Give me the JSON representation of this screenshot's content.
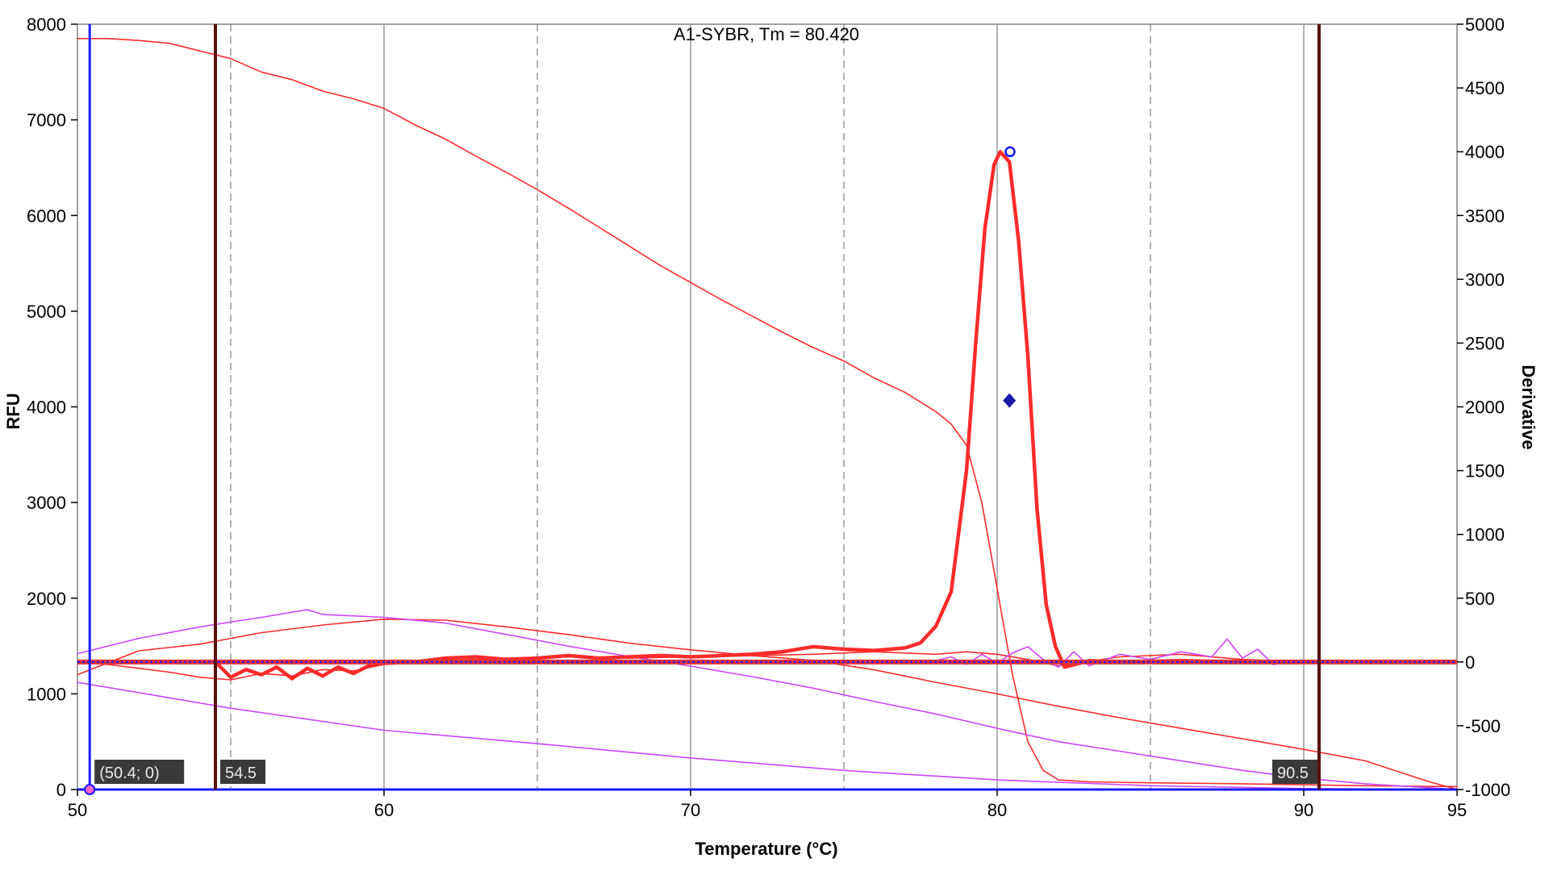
{
  "chart_data": {
    "type": "line",
    "title": "A1-SYBR, Tm = 80.420",
    "xlabel": "Temperature (°C)",
    "ylabel": "RFU",
    "y2label": "Derivative",
    "xlim": [
      50,
      95
    ],
    "ylim": [
      0,
      8000
    ],
    "y2lim": [
      -1000,
      5000
    ],
    "x_ticks": [
      50,
      60,
      70,
      80,
      90,
      95
    ],
    "y_ticks": [
      0,
      1000,
      2000,
      3000,
      4000,
      5000,
      6000,
      7000,
      8000
    ],
    "y2_ticks": [
      -1000,
      -500,
      0,
      500,
      1000,
      1500,
      2000,
      2500,
      3000,
      3500,
      4000,
      4500,
      5000
    ],
    "grid": {
      "solid_x": [
        60,
        70,
        80,
        90
      ],
      "dashed_x": [
        55,
        65,
        75,
        85
      ]
    },
    "colors": {
      "red": "#ff2b2b",
      "magenta": "#cc44ff",
      "blue": "#1a1aff",
      "cursor": "#5a1010",
      "baseline": "#e0303a"
    },
    "cursors": [
      {
        "x": 50.4,
        "label": "(50.4; 0)",
        "color": "#1a1aff"
      },
      {
        "x": 54.5,
        "label": "54.5",
        "color": "#5a1010"
      },
      {
        "x": 90.5,
        "label": "90.5",
        "color": "#5a1010"
      }
    ],
    "tm": {
      "x": 80.42,
      "y2": 4000
    },
    "marker": {
      "x": 80.4,
      "y2": 2050
    },
    "series": [
      {
        "axis": "left",
        "color": "#ff2b2b",
        "width": 1.6,
        "x": [
          50,
          51,
          52,
          53,
          54,
          55,
          56,
          57,
          58,
          59,
          60,
          61,
          62,
          63,
          64,
          65,
          66,
          67,
          68,
          69,
          70,
          71,
          72,
          73,
          74,
          75,
          76,
          77,
          78,
          78.5,
          79,
          79.5,
          80,
          80.5,
          81,
          81.5,
          82,
          83,
          85,
          88,
          90,
          92,
          95
        ],
        "y": [
          7850,
          7850,
          7830,
          7800,
          7720,
          7640,
          7500,
          7420,
          7300,
          7220,
          7120,
          6950,
          6800,
          6620,
          6450,
          6270,
          6080,
          5880,
          5680,
          5480,
          5300,
          5120,
          4950,
          4780,
          4620,
          4480,
          4300,
          4150,
          3950,
          3820,
          3600,
          3000,
          2100,
          1200,
          500,
          200,
          100,
          80,
          70,
          60,
          50,
          40,
          30
        ]
      },
      {
        "axis": "left",
        "color": "#ff2b2b",
        "width": 1.6,
        "x": [
          50,
          52,
          54,
          56,
          58,
          60,
          62,
          64,
          66,
          68,
          70,
          72,
          74,
          76,
          78,
          80,
          82,
          84,
          86,
          88,
          90,
          92,
          94,
          95
        ],
        "y": [
          1200,
          1450,
          1520,
          1640,
          1720,
          1780,
          1770,
          1700,
          1620,
          1530,
          1460,
          1400,
          1350,
          1250,
          1120,
          1000,
          870,
          750,
          640,
          530,
          420,
          300,
          90,
          0
        ]
      },
      {
        "axis": "left",
        "color": "#cc44ff",
        "width": 1.6,
        "x": [
          50,
          52,
          54,
          56,
          57.5,
          58,
          60,
          62,
          64,
          66,
          68,
          70,
          72,
          74,
          76,
          78,
          80,
          82,
          84,
          86,
          88,
          90,
          92,
          94,
          95
        ],
        "y": [
          1420,
          1580,
          1700,
          1800,
          1880,
          1830,
          1800,
          1740,
          1620,
          1500,
          1390,
          1290,
          1180,
          1060,
          920,
          790,
          640,
          500,
          400,
          300,
          200,
          120,
          60,
          20,
          0
        ]
      },
      {
        "axis": "left",
        "color": "#cc44ff",
        "width": 1.6,
        "x": [
          50,
          55,
          60,
          65,
          70,
          75,
          80,
          85,
          90,
          95
        ],
        "y": [
          1120,
          850,
          620,
          480,
          330,
          200,
          100,
          40,
          10,
          0
        ]
      },
      {
        "axis": "right",
        "color": "#ff2b2b",
        "width": 1.6,
        "x": [
          50,
          51,
          52,
          53,
          54,
          55,
          56,
          57,
          58,
          59,
          60,
          62,
          64,
          66,
          68,
          70,
          72,
          74,
          76,
          78,
          79,
          80,
          81,
          82,
          84,
          86,
          88,
          90
        ],
        "y": [
          0,
          -20,
          -50,
          -80,
          -120,
          -140,
          -90,
          -110,
          -60,
          -70,
          -20,
          10,
          30,
          40,
          30,
          40,
          50,
          60,
          80,
          60,
          80,
          60,
          20,
          -30,
          40,
          60,
          20,
          0
        ]
      },
      {
        "axis": "right",
        "color": "#cc44ff",
        "width": 1.6,
        "x": [
          78,
          78.5,
          79,
          79.5,
          80,
          80.5,
          81,
          81.5,
          82,
          82.5,
          83,
          84,
          85,
          86,
          87,
          87.5,
          88,
          88.5,
          89,
          90
        ],
        "y": [
          10,
          40,
          -20,
          60,
          -10,
          70,
          120,
          20,
          -40,
          80,
          -30,
          60,
          20,
          80,
          40,
          180,
          30,
          100,
          -20,
          10
        ]
      },
      {
        "axis": "right",
        "color": "#ff2b2b",
        "width": 4.5,
        "x": [
          54.5,
          55,
          55.5,
          56,
          56.5,
          57,
          57.5,
          58,
          58.5,
          59,
          59.5,
          60,
          61,
          62,
          63,
          64,
          65,
          66,
          67,
          68,
          69,
          70,
          71,
          72,
          73,
          74,
          75,
          76,
          77,
          77.5,
          78,
          78.5,
          79,
          79.3,
          79.6,
          79.9,
          80.1,
          80.4,
          80.7,
          81,
          81.3,
          81.6,
          81.9,
          82.2,
          83,
          84,
          86,
          88,
          90
        ],
        "y": [
          0,
          -120,
          -60,
          -100,
          -40,
          -130,
          -50,
          -110,
          -40,
          -90,
          -30,
          -10,
          0,
          30,
          40,
          20,
          30,
          50,
          30,
          40,
          50,
          40,
          50,
          60,
          80,
          120,
          100,
          90,
          110,
          150,
          280,
          550,
          1500,
          2500,
          3400,
          3900,
          4000,
          3920,
          3300,
          2400,
          1200,
          450,
          120,
          -40,
          10,
          0,
          10,
          0,
          0
        ]
      }
    ]
  }
}
